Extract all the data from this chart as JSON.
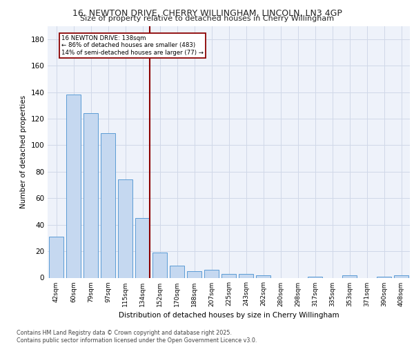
{
  "title_line1": "16, NEWTON DRIVE, CHERRY WILLINGHAM, LINCOLN, LN3 4GP",
  "title_line2": "Size of property relative to detached houses in Cherry Willingham",
  "xlabel": "Distribution of detached houses by size in Cherry Willingham",
  "ylabel": "Number of detached properties",
  "categories": [
    "42sqm",
    "60sqm",
    "79sqm",
    "97sqm",
    "115sqm",
    "134sqm",
    "152sqm",
    "170sqm",
    "188sqm",
    "207sqm",
    "225sqm",
    "243sqm",
    "262sqm",
    "280sqm",
    "298sqm",
    "317sqm",
    "335sqm",
    "353sqm",
    "371sqm",
    "390sqm",
    "408sqm"
  ],
  "values": [
    31,
    138,
    124,
    109,
    74,
    45,
    19,
    9,
    5,
    6,
    3,
    3,
    2,
    0,
    0,
    1,
    0,
    2,
    0,
    1,
    2
  ],
  "bar_color": "#c5d8f0",
  "bar_edge_color": "#5b9bd5",
  "highlight_index": 5,
  "highlight_line_color": "#8b0000",
  "annotation_text": "16 NEWTON DRIVE: 138sqm\n← 86% of detached houses are smaller (483)\n14% of semi-detached houses are larger (77) →",
  "ylim": [
    0,
    190
  ],
  "yticks": [
    0,
    20,
    40,
    60,
    80,
    100,
    120,
    140,
    160,
    180
  ],
  "grid_color": "#d0d8e8",
  "background_color": "#eef2fa",
  "footer": "Contains HM Land Registry data © Crown copyright and database right 2025.\nContains public sector information licensed under the Open Government Licence v3.0."
}
